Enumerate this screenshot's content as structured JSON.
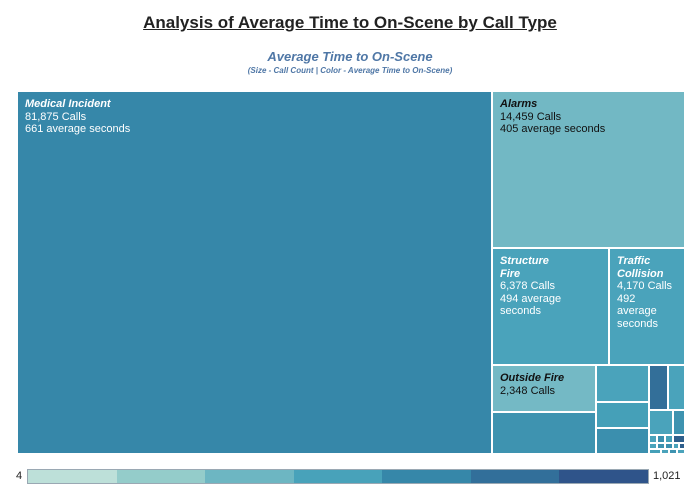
{
  "page_title": "Analysis of Average Time to On-Scene by Call Type",
  "chart_data": {
    "type": "treemap",
    "title": "Average Time to On-Scene",
    "subtitle": "(Size - Call Count | Color - Average Time to On-Scene)",
    "size_metric": "Calls",
    "color_metric": "average seconds",
    "items": [
      {
        "name": "Medical Incident",
        "calls": 81875,
        "calls_text": "81,875 Calls",
        "avg_seconds": 661,
        "avg_text": "661 average seconds",
        "color": "#3687a9",
        "text_color": "#ffffff"
      },
      {
        "name": "Alarms",
        "calls": 14459,
        "calls_text": "14,459 Calls",
        "avg_seconds": 405,
        "avg_text": "405 average seconds",
        "color": "#72b8c4",
        "text_color": "#111111"
      },
      {
        "name": "Structure Fire",
        "calls": 6378,
        "calls_text": "6,378 Calls",
        "avg_seconds": 494,
        "avg_text": "494 average seconds",
        "color": "#4aa3bb",
        "text_color": "#ffffff"
      },
      {
        "name": "Traffic Collision",
        "calls": 4170,
        "calls_text": "4,170 Calls",
        "avg_seconds": 492,
        "avg_text": "492 average seconds",
        "color": "#4aa3bb",
        "text_color": "#ffffff"
      },
      {
        "name": "Outside Fire",
        "calls": 2348,
        "calls_text": "2,348 Calls",
        "avg_seconds": 405,
        "avg_text": "",
        "color": "#74b9c5",
        "text_color": "#111111"
      },
      {
        "name": "",
        "color": "#3e93b0"
      },
      {
        "name": "",
        "color": "#4aa3bb"
      },
      {
        "name": "",
        "color": "#45a0b8"
      },
      {
        "name": "",
        "color": "#3b8fae"
      },
      {
        "name": "",
        "color": "#336f99"
      },
      {
        "name": "",
        "color": "#4aa3bb"
      },
      {
        "name": "",
        "color": "#4aa3bb"
      },
      {
        "name": "",
        "color": "#3e93b0"
      },
      {
        "name": "",
        "color": "#4aa3bb"
      },
      {
        "name": "",
        "color": "#3b8fae"
      },
      {
        "name": "",
        "color": "#45a0b8"
      },
      {
        "name": "",
        "color": "#2f5f8c"
      },
      {
        "name": "",
        "color": "#4aa3bb"
      },
      {
        "name": "",
        "color": "#3e93b0"
      },
      {
        "name": "",
        "color": "#3b8fae"
      },
      {
        "name": "",
        "color": "#4aa3bb"
      },
      {
        "name": "",
        "color": "#2f5f8c"
      },
      {
        "name": "",
        "color": "#45a0b8"
      },
      {
        "name": "",
        "color": "#4aa3bb"
      },
      {
        "name": "",
        "color": "#3e93b0"
      },
      {
        "name": "",
        "color": "#4aa3bb"
      }
    ],
    "color_scale": {
      "min_label": "4",
      "max_label": "1,021",
      "colors": [
        "#bde0d9",
        "#94ccca",
        "#6db6c2",
        "#48a2ba",
        "#3687a9",
        "#326f9a",
        "#2f548a"
      ]
    }
  }
}
